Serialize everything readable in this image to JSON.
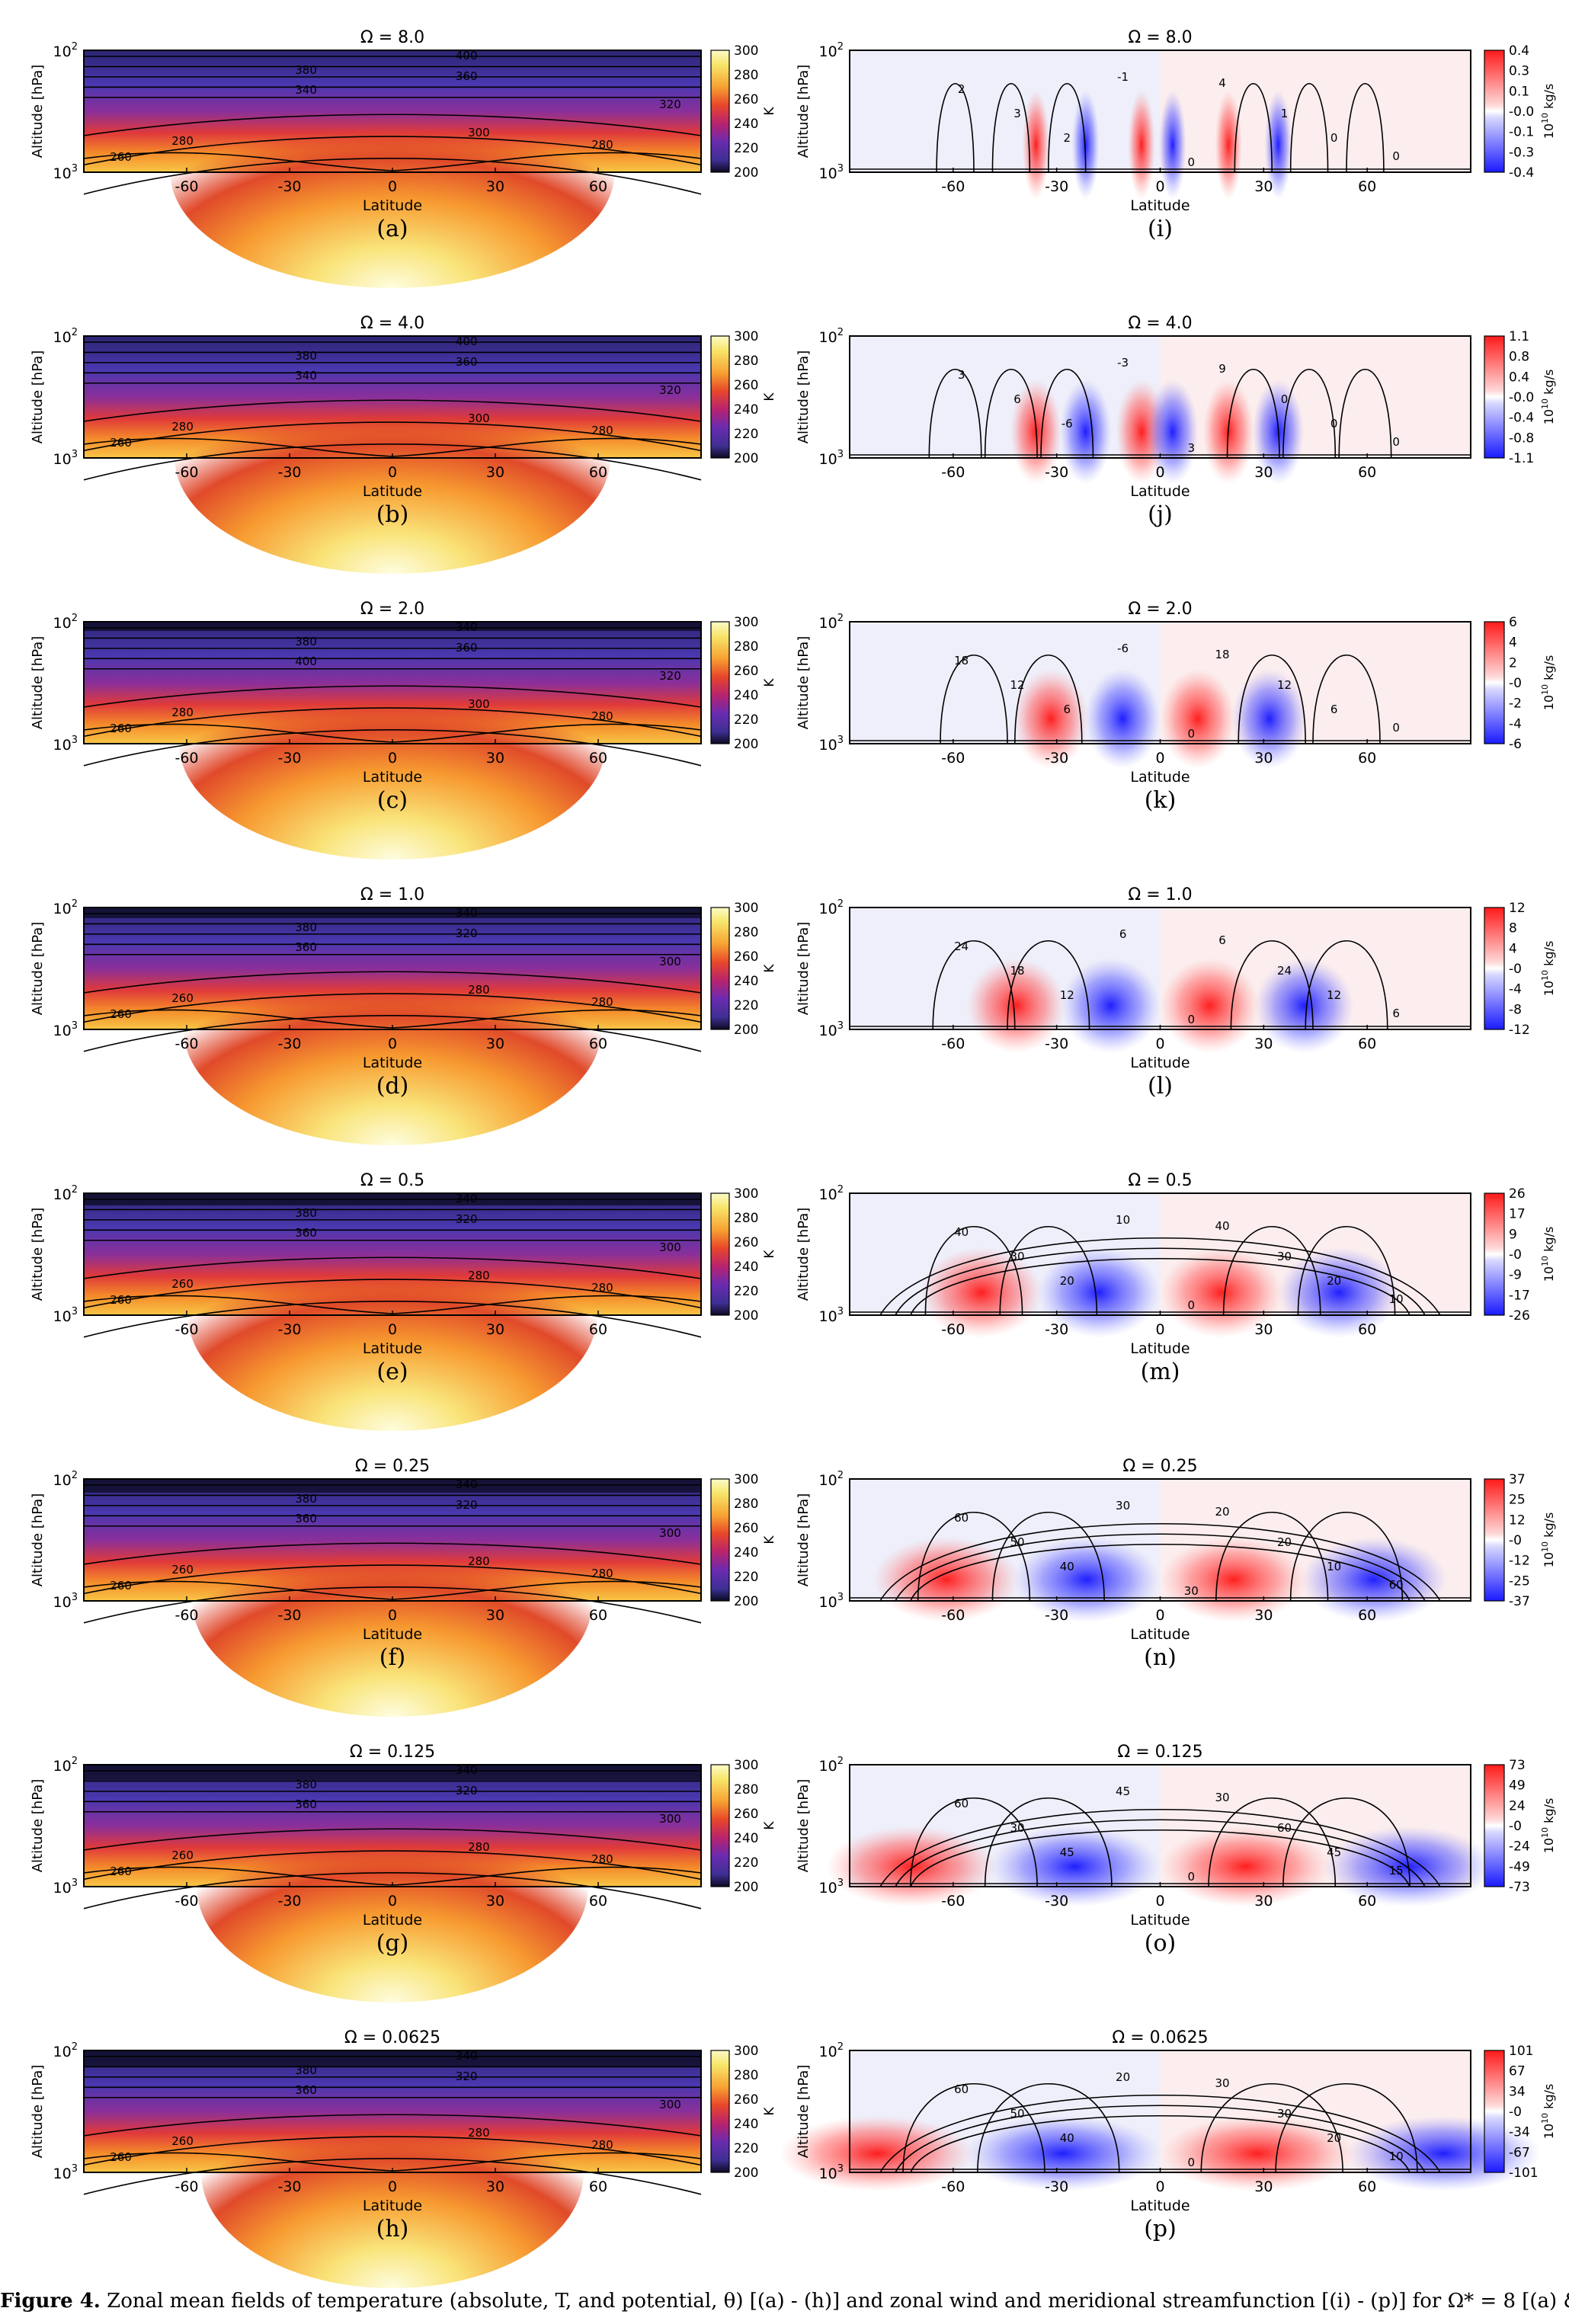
{
  "figure": {
    "x_axis_label": "Latitude",
    "y_axis_label": "Altitude [hPa]",
    "x_ticks": [
      "-60",
      "-30",
      "0",
      "30",
      "60"
    ],
    "y_ticks": {
      "top": "10",
      "top_exp": "2",
      "bottom": "10",
      "bottom_exp": "3"
    },
    "temperature_unit": "K",
    "wind_unit": "10",
    "wind_unit_exp": "10",
    "wind_unit_suffix": " kg/s",
    "temperature_colorbar_ticks": [
      "300",
      "280",
      "260",
      "240",
      "220",
      "200"
    ],
    "rows": [
      {
        "omega": "Ω = 8.0",
        "left_label": "(a)",
        "right_label": "(i)",
        "theta_contours": [
          "380",
          "340",
          "400",
          "360",
          "320",
          "300",
          "280",
          "280",
          "260"
        ],
        "psi_colorbar_ticks": [
          "0.4",
          "0.3",
          "0.1",
          "-0.0",
          "-0.1",
          "-0.3",
          "-0.4"
        ],
        "psi_contour_labels": [
          "2",
          "3",
          "2",
          "-1",
          "4",
          "1",
          "0",
          "0",
          "0"
        ]
      },
      {
        "omega": "Ω = 4.0",
        "left_label": "(b)",
        "right_label": "(j)",
        "theta_contours": [
          "380",
          "340",
          "400",
          "360",
          "320",
          "300",
          "280",
          "280",
          "260"
        ],
        "psi_colorbar_ticks": [
          "1.1",
          "0.8",
          "0.4",
          "-0.0",
          "-0.4",
          "-0.8",
          "-1.1"
        ],
        "psi_contour_labels": [
          "3",
          "6",
          "-6",
          "-3",
          "9",
          "0",
          "0",
          "0",
          "3"
        ]
      },
      {
        "omega": "Ω = 2.0",
        "left_label": "(c)",
        "right_label": "(k)",
        "theta_contours": [
          "380",
          "400",
          "340",
          "360",
          "320",
          "300",
          "280",
          "280",
          "260"
        ],
        "psi_colorbar_ticks": [
          "6",
          "4",
          "2",
          "-0",
          "-2",
          "-4",
          "-6"
        ],
        "psi_contour_labels": [
          "18",
          "12",
          "6",
          "-6",
          "18",
          "12",
          "6",
          "0",
          "0"
        ]
      },
      {
        "omega": "Ω = 1.0",
        "left_label": "(d)",
        "right_label": "(l)",
        "theta_contours": [
          "380",
          "360",
          "340",
          "320",
          "300",
          "280",
          "280",
          "260",
          "260"
        ],
        "psi_colorbar_ticks": [
          "12",
          "8",
          "4",
          "-0",
          "-4",
          "-8",
          "-12"
        ],
        "psi_contour_labels": [
          "24",
          "18",
          "12",
          "6",
          "6",
          "24",
          "12",
          "6",
          "0"
        ]
      },
      {
        "omega": "Ω = 0.5",
        "left_label": "(e)",
        "right_label": "(m)",
        "theta_contours": [
          "380",
          "360",
          "340",
          "320",
          "300",
          "280",
          "280",
          "260",
          "260"
        ],
        "psi_colorbar_ticks": [
          "26",
          "17",
          "9",
          "-0",
          "-9",
          "-17",
          "-26"
        ],
        "psi_contour_labels": [
          "40",
          "30",
          "20",
          "10",
          "40",
          "30",
          "20",
          "10",
          "0"
        ]
      },
      {
        "omega": "Ω = 0.25",
        "left_label": "(f)",
        "right_label": "(n)",
        "theta_contours": [
          "380",
          "360",
          "340",
          "320",
          "300",
          "280",
          "280",
          "260",
          "260"
        ],
        "psi_colorbar_ticks": [
          "37",
          "25",
          "12",
          "-0",
          "-12",
          "-25",
          "-37"
        ],
        "psi_contour_labels": [
          "60",
          "50",
          "40",
          "30",
          "20",
          "20",
          "10",
          "60",
          "30"
        ]
      },
      {
        "omega": "Ω = 0.125",
        "left_label": "(g)",
        "right_label": "(o)",
        "theta_contours": [
          "380",
          "360",
          "340",
          "320",
          "300",
          "280",
          "280",
          "260",
          "260"
        ],
        "psi_colorbar_ticks": [
          "73",
          "49",
          "24",
          "-0",
          "-24",
          "-49",
          "-73"
        ],
        "psi_contour_labels": [
          "60",
          "30",
          "45",
          "45",
          "30",
          "60",
          "45",
          "15",
          "0"
        ]
      },
      {
        "omega": "Ω = 0.0625",
        "left_label": "(h)",
        "right_label": "(p)",
        "theta_contours": [
          "380",
          "360",
          "340",
          "320",
          "300",
          "280",
          "280",
          "260",
          "260"
        ],
        "psi_colorbar_ticks": [
          "101",
          "67",
          "34",
          "-0",
          "-34",
          "-67",
          "-101"
        ],
        "psi_contour_labels": [
          "60",
          "50",
          "40",
          "20",
          "30",
          "30",
          "20",
          "10",
          "0"
        ]
      }
    ]
  },
  "caption": {
    "label": "Figure 4.",
    "text": " Zonal mean fields of temperature (absolute, T, and potential, θ) [(a) - (h)] and zonal wind and meridional streamfunction [(i) - (p)] for Ω* = 8 [(a) & (i)], 4"
  }
}
